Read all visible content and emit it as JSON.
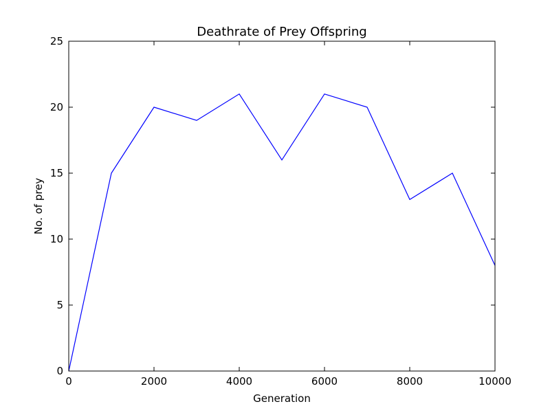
{
  "chart_data": {
    "type": "line",
    "title": "Deathrate of Prey Offspring",
    "xlabel": "Generation",
    "ylabel": "No. of prey",
    "xlim": [
      0,
      10000
    ],
    "ylim": [
      0,
      25
    ],
    "xticks": [
      0,
      2000,
      4000,
      6000,
      8000,
      10000
    ],
    "yticks": [
      0,
      5,
      10,
      15,
      20,
      25
    ],
    "grid": false,
    "series": [
      {
        "color": "#0000ff",
        "x": [
          0,
          1000,
          2000,
          3000,
          4000,
          5000,
          6000,
          7000,
          8000,
          9000,
          10000
        ],
        "y": [
          0,
          15,
          20,
          19,
          21,
          16,
          21,
          20,
          13,
          15,
          8
        ]
      }
    ]
  }
}
